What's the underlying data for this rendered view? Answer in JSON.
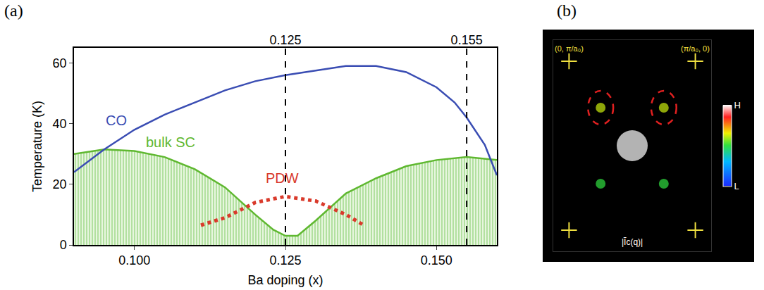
{
  "chart_data": [
    {
      "type": "line",
      "panel_label": "(a)",
      "xlabel": "Ba doping (x)",
      "ylabel": "Temperature (K)",
      "xlim": [
        0.09,
        0.16
      ],
      "xticks": [
        {
          "value": 0.1,
          "label": "0.100"
        },
        0.125,
        {
          "value": 0.15,
          "label": "0.150"
        }
      ],
      "x2ticks": [
        0.125,
        0.155
      ],
      "ylim": [
        0,
        65
      ],
      "yticks": [
        0,
        20,
        40,
        60
      ],
      "grid": false,
      "series": [
        {
          "name": "CO",
          "color": "#3a4db3",
          "type": "line",
          "x": [
            0.09,
            0.095,
            0.1,
            0.105,
            0.11,
            0.115,
            0.12,
            0.125,
            0.13,
            0.135,
            0.14,
            0.145,
            0.15,
            0.153,
            0.155,
            0.158,
            0.16
          ],
          "values": [
            24,
            31.5,
            38,
            43,
            47,
            51,
            54,
            56,
            57.5,
            59,
            59,
            57,
            52,
            47,
            42,
            33,
            23
          ]
        },
        {
          "name": "bulk SC",
          "color": "#5fb830",
          "type": "area",
          "x": [
            0.09,
            0.095,
            0.1,
            0.105,
            0.11,
            0.115,
            0.12,
            0.123,
            0.125,
            0.127,
            0.13,
            0.135,
            0.14,
            0.145,
            0.15,
            0.155,
            0.16
          ],
          "values": [
            30,
            31.5,
            31,
            29,
            25,
            19,
            10,
            5,
            3,
            3,
            8,
            17,
            22,
            26,
            28,
            29,
            28
          ]
        },
        {
          "name": "PDW",
          "color": "#d93a2b",
          "type": "line",
          "line_style": "dotted",
          "x": [
            0.111,
            0.115,
            0.12,
            0.125,
            0.13,
            0.135,
            0.138
          ],
          "values": [
            6.5,
            9,
            14,
            16,
            14.5,
            10,
            6.5
          ]
        }
      ],
      "annotations": [
        {
          "text": "CO",
          "x": 0.097,
          "y": 41,
          "color": "#3a4db3"
        },
        {
          "text": "bulk SC",
          "x": 0.106,
          "y": 34,
          "color": "#5fb830"
        },
        {
          "text": "PDW",
          "x": 0.1245,
          "y": 22,
          "color": "#d93a2b"
        }
      ]
    },
    {
      "type": "scatter",
      "panel_label": "(b)",
      "xlabel": "|Ĩc(q)|",
      "xlim": [
        -1.25,
        1.25
      ],
      "ylim": [
        -1.25,
        1.25
      ],
      "tick_labels": false,
      "x": [
        0,
        -0.5,
        0.5,
        -0.5,
        0.5
      ],
      "y": [
        0,
        0.45,
        0.45,
        -0.45,
        -0.45
      ],
      "values": [
        1,
        0.62,
        0.62,
        0.5,
        0.5
      ],
      "circled": [
        1,
        2
      ],
      "bragg_points": [
        {
          "x": -1,
          "y": 1,
          "label": "(0, π/a₀)"
        },
        {
          "x": 1,
          "y": 1,
          "label": "(π/a₀, 0)"
        },
        {
          "x": -1,
          "y": -1
        },
        {
          "x": 1,
          "y": -1
        }
      ],
      "colorbar": {
        "range": [
          0,
          1
        ],
        "ticks": [
          {
            "value": 0,
            "label": "L"
          },
          {
            "value": 1,
            "label": "H"
          }
        ]
      }
    }
  ]
}
